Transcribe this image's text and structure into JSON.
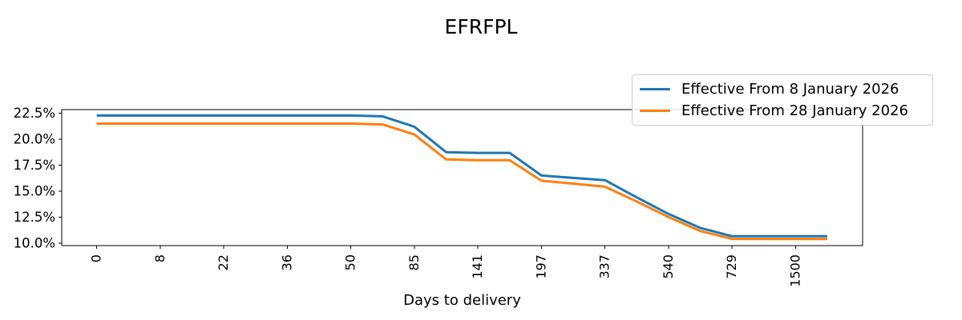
{
  "header": {
    "title": "EFRFPL"
  },
  "chart_data": {
    "type": "line",
    "title": "EFRFPL",
    "xlabel": "Days to delivery",
    "ylabel": "",
    "grid": false,
    "legend_position": "upper right",
    "ylim": [
      9.75,
      22.85
    ],
    "y_ticks": [
      10.0,
      12.5,
      15.0,
      17.5,
      20.0,
      22.5
    ],
    "y_tick_labels": [
      "10.0%",
      "12.5%",
      "15.0%",
      "17.5%",
      "20.0%",
      "22.5%"
    ],
    "x_tick_labels": [
      "0",
      "8",
      "22",
      "36",
      "50",
      "85",
      "141",
      "197",
      "337",
      "540",
      "729",
      "1500"
    ],
    "x_tick_indices": [
      0,
      2,
      4,
      6,
      8,
      10,
      12,
      14,
      16,
      18,
      20,
      22
    ],
    "num_points": 24,
    "axis_color": "#000000",
    "series": [
      {
        "name": "Effective From 8 January 2026",
        "color": "#1f77b4",
        "values": [
          22.28,
          22.28,
          22.28,
          22.28,
          22.28,
          22.28,
          22.28,
          22.28,
          22.28,
          22.2,
          21.2,
          18.75,
          18.68,
          18.68,
          16.5,
          16.27,
          16.05,
          14.4,
          12.8,
          11.45,
          10.65,
          10.65,
          10.65,
          10.65
        ]
      },
      {
        "name": "Effective From 28 January 2026",
        "color": "#ff7f0e",
        "values": [
          21.5,
          21.5,
          21.5,
          21.5,
          21.5,
          21.5,
          21.5,
          21.5,
          21.5,
          21.42,
          20.45,
          18.05,
          17.98,
          17.98,
          16.0,
          15.72,
          15.42,
          14.0,
          12.5,
          11.15,
          10.4,
          10.38,
          10.38,
          10.38
        ]
      }
    ]
  }
}
